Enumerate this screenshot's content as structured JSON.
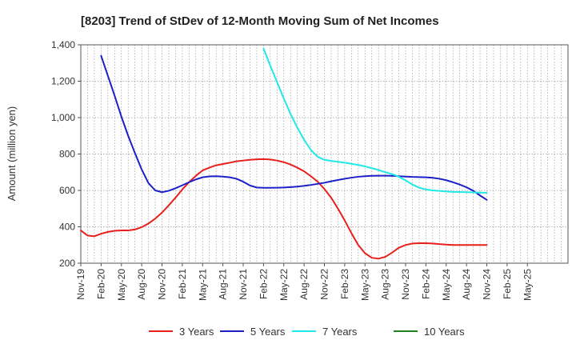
{
  "chart_data": {
    "type": "line",
    "title": "[8203]  Trend of StDev of 12-Month Moving Sum of Net Incomes",
    "xlabel": "",
    "ylabel": "Amount (million yen)",
    "ylim": [
      200,
      1400
    ],
    "yticks": [
      200,
      400,
      600,
      800,
      1000,
      1200,
      1400
    ],
    "ytick_labels": [
      "200",
      "400",
      "600",
      "800",
      "1,000",
      "1,200",
      "1,400"
    ],
    "x_start": "Nov-19",
    "x_end": "Nov-25",
    "xtick_labels": [
      "Nov-19",
      "Feb-20",
      "May-20",
      "Aug-20",
      "Nov-20",
      "Feb-21",
      "May-21",
      "Aug-21",
      "Nov-21",
      "Feb-22",
      "May-22",
      "Aug-22",
      "Nov-22",
      "Feb-23",
      "May-23",
      "Aug-23",
      "Nov-23",
      "Feb-24",
      "May-24",
      "Aug-24",
      "Nov-24",
      "Feb-25",
      "May-25"
    ],
    "grid": true,
    "legend_position": "bottom",
    "series": [
      {
        "name": "3 Years",
        "color": "#e8201c",
        "x": [
          "2019-11",
          "2019-12",
          "2020-01",
          "2020-02",
          "2020-03",
          "2020-04",
          "2020-05",
          "2020-06",
          "2020-07",
          "2020-08",
          "2020-09",
          "2020-10",
          "2020-11",
          "2020-12",
          "2021-01",
          "2021-02",
          "2021-03",
          "2021-04",
          "2021-05",
          "2021-06",
          "2021-07",
          "2021-08",
          "2021-09",
          "2021-10",
          "2021-11",
          "2021-12",
          "2022-01",
          "2022-02",
          "2022-03",
          "2022-04",
          "2022-05",
          "2022-06",
          "2022-07",
          "2022-08",
          "2022-09",
          "2022-10",
          "2022-11",
          "2022-12",
          "2023-01",
          "2023-02",
          "2023-03",
          "2023-04",
          "2023-05",
          "2023-06",
          "2023-07",
          "2023-08",
          "2023-09",
          "2023-10",
          "2023-11",
          "2023-12",
          "2024-01",
          "2024-02",
          "2024-03",
          "2024-04",
          "2024-05",
          "2024-06",
          "2024-07",
          "2024-08",
          "2024-09",
          "2024-10",
          "2024-11"
        ],
        "values": [
          380,
          352,
          348,
          362,
          372,
          378,
          380,
          380,
          385,
          398,
          418,
          445,
          478,
          518,
          560,
          605,
          645,
          680,
          710,
          725,
          738,
          745,
          752,
          760,
          764,
          768,
          771,
          772,
          770,
          764,
          755,
          742,
          725,
          705,
          678,
          648,
          608,
          560,
          500,
          435,
          365,
          300,
          255,
          230,
          225,
          235,
          258,
          285,
          300,
          308,
          310,
          310,
          308,
          305,
          302,
          300,
          300,
          300,
          300,
          300,
          300
        ]
      },
      {
        "name": "5 Years",
        "color": "#1c20c8",
        "x": [
          "2020-02",
          "2020-03",
          "2020-04",
          "2020-05",
          "2020-06",
          "2020-07",
          "2020-08",
          "2020-09",
          "2020-10",
          "2020-11",
          "2020-12",
          "2021-01",
          "2021-02",
          "2021-03",
          "2021-04",
          "2021-05",
          "2021-06",
          "2021-07",
          "2021-08",
          "2021-09",
          "2021-10",
          "2021-11",
          "2021-12",
          "2022-01",
          "2022-02",
          "2022-03",
          "2022-04",
          "2022-05",
          "2022-06",
          "2022-07",
          "2022-08",
          "2022-09",
          "2022-10",
          "2022-11",
          "2022-12",
          "2023-01",
          "2023-02",
          "2023-03",
          "2023-04",
          "2023-05",
          "2023-06",
          "2023-07",
          "2023-08",
          "2023-09",
          "2023-10",
          "2023-11",
          "2023-12",
          "2024-01",
          "2024-02",
          "2024-03",
          "2024-04",
          "2024-05",
          "2024-06",
          "2024-07",
          "2024-08",
          "2024-09",
          "2024-10",
          "2024-11"
        ],
        "values": [
          1340,
          1230,
          1120,
          1005,
          900,
          805,
          715,
          640,
          600,
          590,
          598,
          612,
          628,
          645,
          660,
          672,
          677,
          678,
          676,
          672,
          664,
          648,
          627,
          616,
          614,
          614,
          615,
          616,
          618,
          621,
          625,
          630,
          636,
          642,
          650,
          657,
          664,
          670,
          675,
          678,
          680,
          681,
          681,
          680,
          678,
          676,
          674,
          673,
          672,
          669,
          664,
          656,
          645,
          632,
          617,
          598,
          572,
          548
        ]
      },
      {
        "name": "7 Years",
        "color": "#22e8e8",
        "x": [
          "2022-02",
          "2022-03",
          "2022-04",
          "2022-05",
          "2022-06",
          "2022-07",
          "2022-08",
          "2022-09",
          "2022-10",
          "2022-11",
          "2022-12",
          "2023-01",
          "2023-02",
          "2023-03",
          "2023-04",
          "2023-05",
          "2023-06",
          "2023-07",
          "2023-08",
          "2023-09",
          "2023-10",
          "2023-11",
          "2023-12",
          "2024-01",
          "2024-02",
          "2024-03",
          "2024-04",
          "2024-05",
          "2024-06",
          "2024-07",
          "2024-08",
          "2024-09",
          "2024-10",
          "2024-11"
        ],
        "values": [
          1380,
          1285,
          1195,
          1105,
          1020,
          945,
          878,
          822,
          785,
          768,
          762,
          757,
          752,
          746,
          740,
          732,
          722,
          712,
          700,
          690,
          675,
          655,
          632,
          615,
          605,
          600,
          597,
          594,
          592,
          591,
          590,
          589,
          588,
          587
        ]
      },
      {
        "name": "10 Years",
        "color": "#208020",
        "x": [],
        "values": []
      }
    ]
  }
}
